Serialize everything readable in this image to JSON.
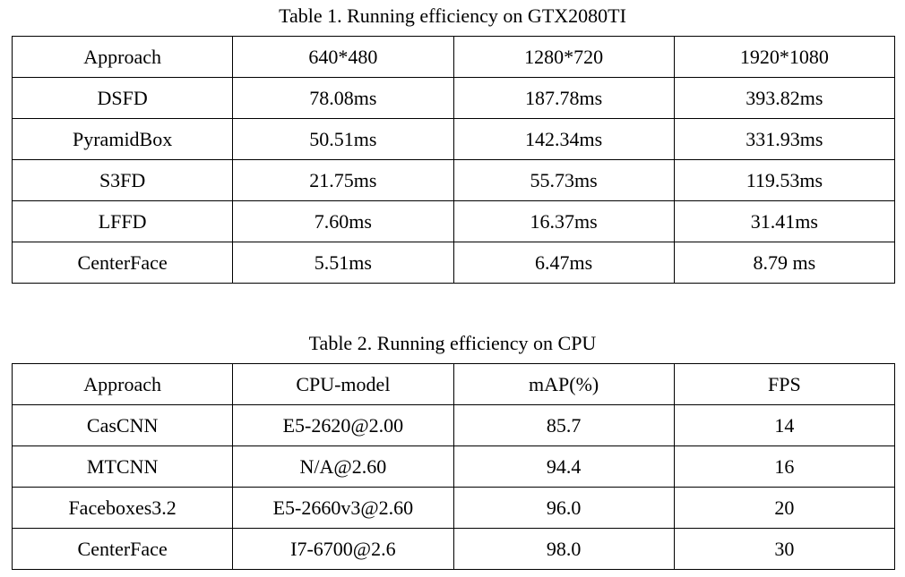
{
  "table1": {
    "caption": "Table 1. Running efficiency on GTX2080TI",
    "headers": [
      "Approach",
      "640*480",
      "1280*720",
      "1920*1080"
    ],
    "rows": [
      [
        "DSFD",
        "78.08ms",
        "187.78ms",
        "393.82ms"
      ],
      [
        "PyramidBox",
        "50.51ms",
        "142.34ms",
        "331.93ms"
      ],
      [
        "S3FD",
        "21.75ms",
        "55.73ms",
        "119.53ms"
      ],
      [
        "LFFD",
        "7.60ms",
        "16.37ms",
        "31.41ms"
      ],
      [
        "CenterFace",
        "5.51ms",
        "6.47ms",
        "8.79 ms"
      ]
    ]
  },
  "table2": {
    "caption": "Table 2. Running efficiency on CPU",
    "headers": [
      "Approach",
      "CPU-model",
      "mAP(%)",
      "FPS"
    ],
    "rows": [
      [
        "CasCNN",
        "E5-2620@2.00",
        "85.7",
        "14"
      ],
      [
        "MTCNN",
        "N/A@2.60",
        "94.4",
        "16"
      ],
      [
        "Faceboxes3.2",
        "E5-2660v3@2.60",
        "96.0",
        "20"
      ],
      [
        "CenterFace",
        "I7-6700@2.6",
        "98.0",
        "30"
      ]
    ]
  }
}
